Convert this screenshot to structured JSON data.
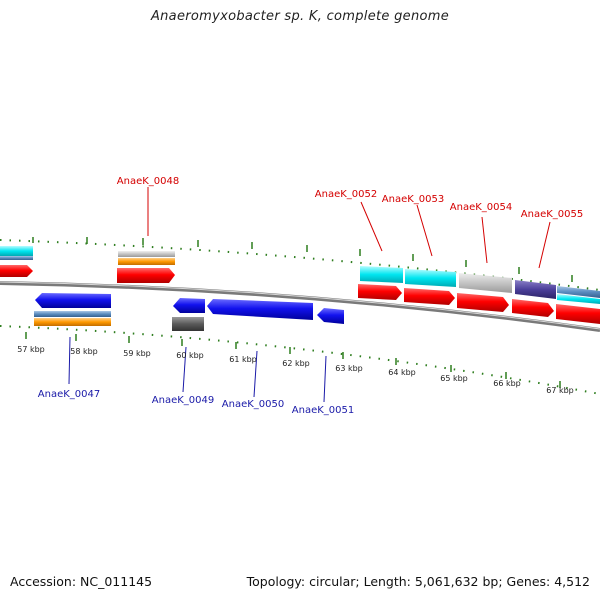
{
  "title": "Anaeromyxobacter sp. K, complete genome",
  "footer": {
    "accession": "Accession: NC_011145",
    "summary": "Topology: circular; Length: 5,061,632 bp; Genes: 4,512"
  },
  "ruler": {
    "unit": "kbp",
    "ticks": [
      "57 kbp",
      "58 kbp",
      "59 kbp",
      "60 kbp",
      "61 kbp",
      "62 kbp",
      "63 kbp",
      "64 kbp",
      "65 kbp",
      "66 kbp",
      "67 kbp"
    ]
  },
  "genes": {
    "top": [
      "AnaeK_0048",
      "AnaeK_0052",
      "AnaeK_0053",
      "AnaeK_0054",
      "AnaeK_0055"
    ],
    "bottom": [
      "AnaeK_0047",
      "AnaeK_0049",
      "AnaeK_0050",
      "AnaeK_0051"
    ]
  },
  "colors": {
    "top_label": "#d40000",
    "bottom_label": "#1a1aa8",
    "tick": "#2e7d1e",
    "backbone": "#7a7a7a",
    "forward_cds": "#ff0000",
    "reverse_cds": "#1010ee",
    "cyan": "#00e5ee",
    "grey": "#c4c4c4",
    "orange": "#ff9900",
    "purple": "#4b3f9a",
    "steel": "#5b8cbf",
    "dark_grey": "#555555"
  }
}
